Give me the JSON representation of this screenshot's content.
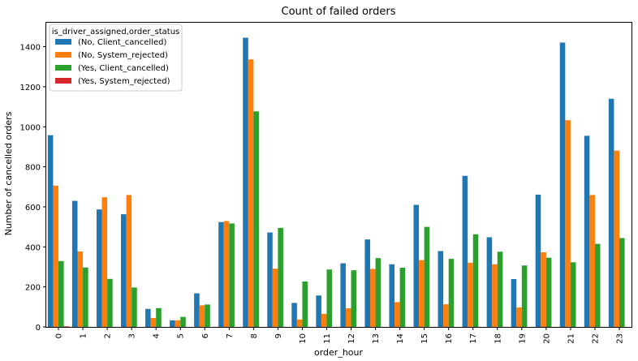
{
  "chart_data": {
    "type": "bar",
    "title": "Count of failed orders",
    "xlabel": "order_hour",
    "ylabel": "Number of cancelled orders",
    "categories": [
      "0",
      "1",
      "2",
      "3",
      "4",
      "5",
      "6",
      "7",
      "8",
      "9",
      "10",
      "11",
      "12",
      "13",
      "14",
      "15",
      "16",
      "17",
      "18",
      "19",
      "20",
      "21",
      "22",
      "23"
    ],
    "ylim": [
      0,
      1520
    ],
    "yticks": [
      0,
      200,
      400,
      600,
      800,
      1000,
      1200,
      1400
    ],
    "grid": false,
    "legend": {
      "title": "is_driver_assigned,order_status",
      "placement": "top-left"
    },
    "series": [
      {
        "name": "(No, Client_cancelled)",
        "color": "#1f77b4",
        "values": [
          958,
          630,
          587,
          563,
          90,
          33,
          168,
          524,
          1445,
          472,
          120,
          157,
          318,
          437,
          313,
          610,
          379,
          755,
          448,
          239,
          661,
          1421,
          955,
          1140
        ]
      },
      {
        "name": "(No, System_rejected)",
        "color": "#ff7f0e",
        "values": [
          706,
          377,
          648,
          659,
          45,
          33,
          108,
          529,
          1337,
          291,
          37,
          65,
          93,
          290,
          124,
          334,
          113,
          321,
          313,
          97,
          373,
          1033,
          659,
          881
        ]
      },
      {
        "name": "(Yes, Client_cancelled)",
        "color": "#2ca02c",
        "values": [
          329,
          297,
          240,
          197,
          94,
          50,
          112,
          517,
          1077,
          495,
          227,
          287,
          283,
          344,
          296,
          500,
          340,
          463,
          376,
          307,
          346,
          323,
          415,
          444
        ]
      },
      {
        "name": "(Yes, System_rejected)",
        "color": "#d62728",
        "values": [
          3,
          0,
          0,
          0,
          0,
          0,
          0,
          0,
          0,
          0,
          0,
          0,
          0,
          0,
          0,
          0,
          0,
          0,
          0,
          0,
          0,
          0,
          0,
          0
        ]
      }
    ]
  }
}
